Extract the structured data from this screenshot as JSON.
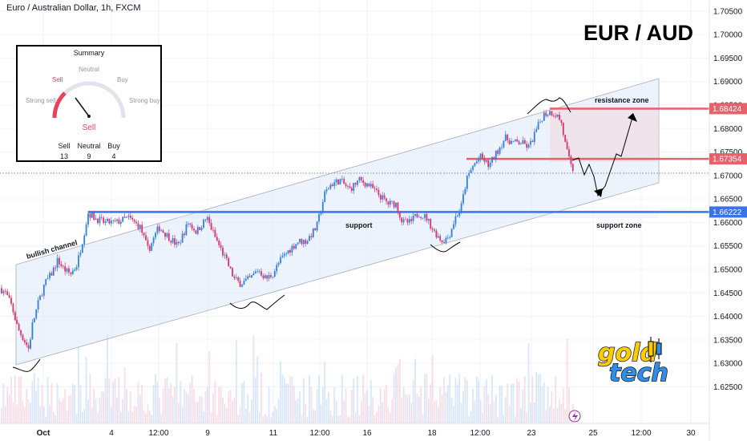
{
  "chart_data": {
    "type": "candlestick",
    "title": "Euro / Australian Dollar, 1h, FXCM",
    "symbol_label": "EUR / AUD",
    "y_range": [
      1.622,
      1.706
    ],
    "y_ticks": [
      "1.70500",
      "1.70000",
      "1.69500",
      "1.69000",
      "1.68500",
      "1.68000",
      "1.67500",
      "1.67000",
      "1.66500",
      "1.66000",
      "1.65500",
      "1.65000",
      "1.64500",
      "1.64000",
      "1.63500",
      "1.63000",
      "1.62500"
    ],
    "x_ticks": [
      "Oct",
      "4",
      "12:00",
      "9",
      "11",
      "12:00",
      "16",
      "18",
      "12:00",
      "23",
      "25",
      "12:00",
      "30"
    ],
    "price_path": [
      [
        0,
        1.646
      ],
      [
        7,
        1.645
      ],
      [
        15,
        1.642
      ],
      [
        22,
        1.6375
      ],
      [
        30,
        1.635
      ],
      [
        36,
        1.633
      ],
      [
        40,
        1.638
      ],
      [
        48,
        1.643
      ],
      [
        56,
        1.647
      ],
      [
        64,
        1.649
      ],
      [
        72,
        1.652
      ],
      [
        80,
        1.65
      ],
      [
        88,
        1.649
      ],
      [
        96,
        1.651
      ],
      [
        104,
        1.657
      ],
      [
        110,
        1.662
      ],
      [
        118,
        1.661
      ],
      [
        130,
        1.66
      ],
      [
        145,
        1.66
      ],
      [
        160,
        1.661
      ],
      [
        175,
        1.659
      ],
      [
        185,
        1.654
      ],
      [
        198,
        1.659
      ],
      [
        210,
        1.657
      ],
      [
        222,
        1.655
      ],
      [
        235,
        1.66
      ],
      [
        245,
        1.658
      ],
      [
        258,
        1.661
      ],
      [
        268,
        1.657
      ],
      [
        282,
        1.652
      ],
      [
        292,
        1.648
      ],
      [
        300,
        1.647
      ],
      [
        312,
        1.648
      ],
      [
        322,
        1.65
      ],
      [
        332,
        1.648
      ],
      [
        340,
        1.649
      ],
      [
        350,
        1.652
      ],
      [
        360,
        1.654
      ],
      [
        372,
        1.656
      ],
      [
        382,
        1.656
      ],
      [
        395,
        1.659
      ],
      [
        405,
        1.666
      ],
      [
        412,
        1.668
      ],
      [
        424,
        1.669
      ],
      [
        436,
        1.667
      ],
      [
        448,
        1.669
      ],
      [
        460,
        1.668
      ],
      [
        472,
        1.666
      ],
      [
        484,
        1.664
      ],
      [
        494,
        1.664
      ],
      [
        502,
        1.66
      ],
      [
        512,
        1.66
      ],
      [
        522,
        1.662
      ],
      [
        532,
        1.661
      ],
      [
        542,
        1.658
      ],
      [
        552,
        1.656
      ],
      [
        560,
        1.657
      ],
      [
        568,
        1.661
      ],
      [
        575,
        1.663
      ],
      [
        582,
        1.669
      ],
      [
        590,
        1.672
      ],
      [
        600,
        1.674
      ],
      [
        610,
        1.672
      ],
      [
        620,
        1.675
      ],
      [
        630,
        1.678
      ],
      [
        640,
        1.677
      ],
      [
        650,
        1.677
      ],
      [
        660,
        1.676
      ],
      [
        670,
        1.68
      ],
      [
        678,
        1.683
      ],
      [
        686,
        1.6835
      ],
      [
        694,
        1.683
      ],
      [
        700,
        1.6815
      ],
      [
        706,
        1.676
      ],
      [
        712,
        1.672
      ],
      [
        716,
        1.671
      ]
    ],
    "levels": [
      {
        "label": "1.68424",
        "value": 1.68424,
        "color": "#e8616a"
      },
      {
        "label": "1.67354",
        "value": 1.67354,
        "color": "#e8616a"
      },
      {
        "label": "1.66222",
        "value": 1.66222,
        "color": "#3a72e8"
      }
    ],
    "current_price": 1.6712,
    "annotations": [
      "resistance zone",
      "support",
      "support zone",
      "bullish channel"
    ],
    "summary_widget": {
      "title": "Summary",
      "labels": {
        "sell": "Sell",
        "neutral": "Neutral",
        "buy": "Buy",
        "strong_sell": "Strong sell",
        "strong_buy": "Strong buy"
      },
      "result": "Sell",
      "counts": [
        {
          "label": "Sell",
          "value": "13"
        },
        {
          "label": "Neutral",
          "value": "9"
        },
        {
          "label": "Buy",
          "value": "4"
        }
      ]
    },
    "logo": {
      "line1": "gold",
      "line2": "tech"
    }
  }
}
